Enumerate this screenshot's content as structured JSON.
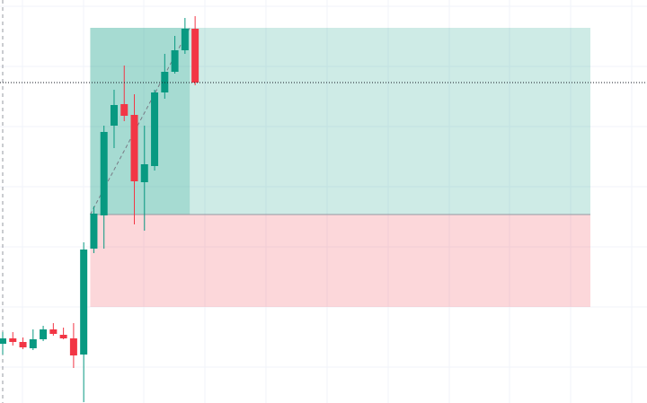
{
  "chart_data": {
    "type": "candlestick",
    "categories": [
      null,
      null,
      null,
      null,
      null,
      null,
      null,
      null,
      null,
      null,
      null,
      null,
      null,
      null,
      null,
      null,
      null,
      null,
      null,
      null
    ],
    "open": [
      66,
      72,
      68,
      61,
      71,
      82,
      76,
      72,
      54,
      172,
      209,
      309,
      333,
      321,
      246,
      264,
      346,
      369,
      393,
      417
    ],
    "high": [
      79,
      79,
      73,
      82,
      86,
      89,
      84,
      89,
      179,
      219,
      309,
      349,
      376,
      344,
      309,
      349,
      389,
      409,
      429,
      431
    ],
    "low": [
      54,
      64,
      60,
      59,
      69,
      75,
      71,
      39,
      1,
      167,
      172,
      284,
      314,
      199,
      192,
      259,
      339,
      367,
      389,
      354
    ],
    "close": [
      72,
      68,
      62,
      71,
      82,
      77,
      72,
      53,
      171,
      211,
      302,
      332,
      320,
      247,
      266,
      346,
      369,
      393,
      417,
      357
    ],
    "up_color": "#089981",
    "down_color": "#f23645",
    "ylim": [
      0,
      449
    ],
    "position": {
      "entry": 210,
      "target": 418,
      "stop": 107,
      "profit_color": "#089981",
      "loss_color": "#f23645"
    },
    "grid": true
  }
}
